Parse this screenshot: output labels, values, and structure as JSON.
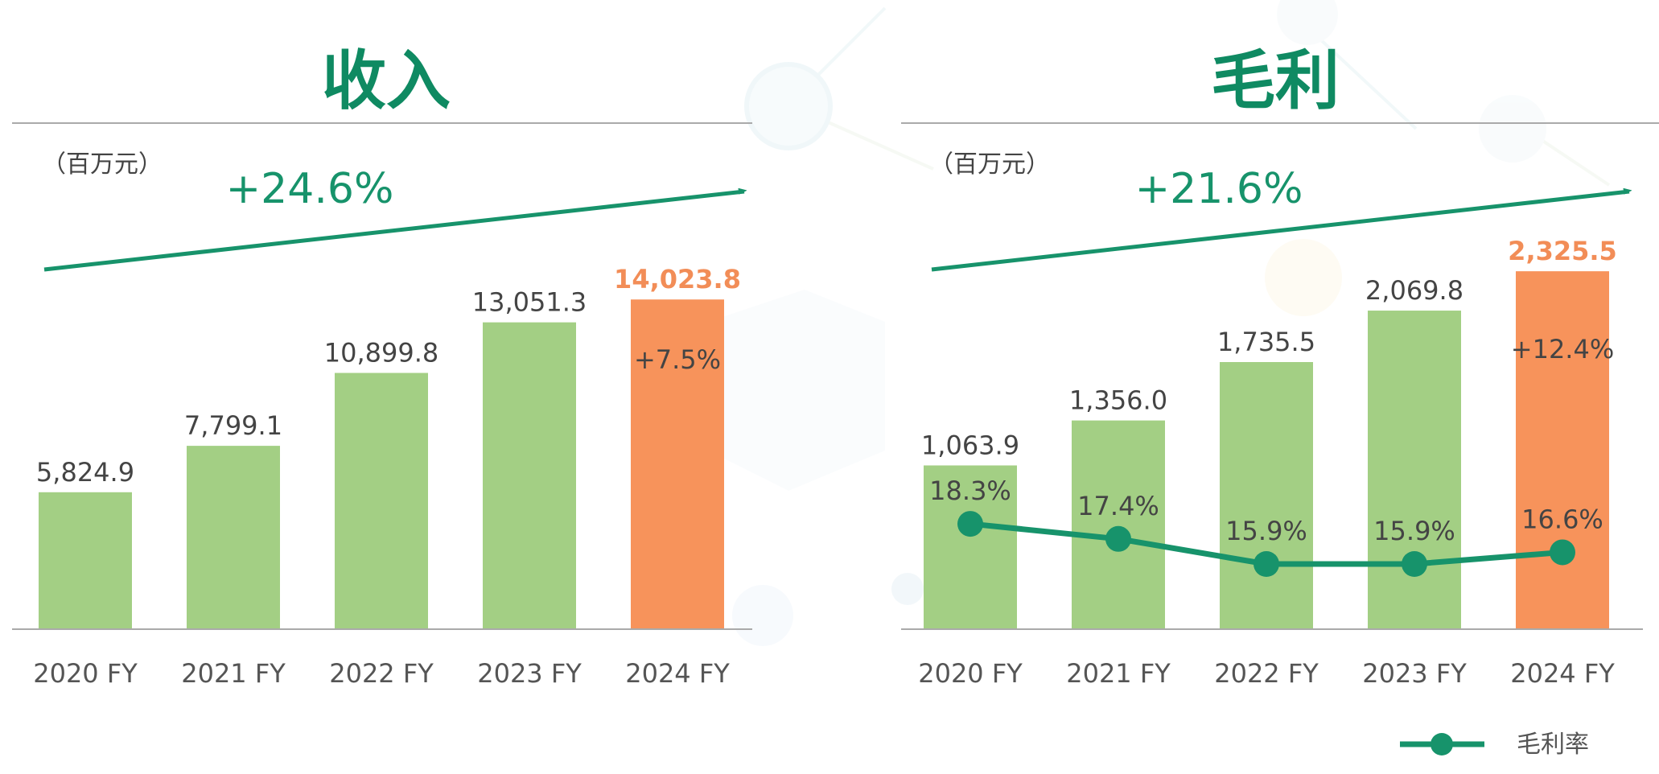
{
  "colors": {
    "bar": "#a3cf84",
    "bar_highlight": "#f7935b",
    "title": "#0f8a62",
    "arrow": "#17936b",
    "line": "#17936b",
    "highlight_text": "#f28d57",
    "axis": "#aaaaaa"
  },
  "chart_data": [
    {
      "type": "bar",
      "title": "收入",
      "unit": "（百万元）",
      "growth": "+24.6%",
      "categories": [
        "2020 FY",
        "2021 FY",
        "2022 FY",
        "2023 FY",
        "2024 FY"
      ],
      "values": [
        5824.9,
        7799.1,
        10899.8,
        13051.3,
        14023.8
      ],
      "value_labels": [
        "5,824.9",
        "7,799.1",
        "10,899.8",
        "13,051.3",
        "14,023.8"
      ],
      "highlight_index": 4,
      "highlight_change": "+7.5%",
      "ylim": [
        0,
        15000
      ]
    },
    {
      "type": "bar",
      "title": "毛利",
      "unit": "（百万元）",
      "growth": "+21.6%",
      "categories": [
        "2020 FY",
        "2021 FY",
        "2022 FY",
        "2023 FY",
        "2024 FY"
      ],
      "values": [
        1063.9,
        1356.0,
        1735.5,
        2069.8,
        2325.5
      ],
      "value_labels": [
        "1,063.9",
        "1,356.0",
        "1,735.5",
        "2,069.8",
        "2,325.5"
      ],
      "highlight_index": 4,
      "highlight_change": "+12.4%",
      "ylim": [
        0,
        2800
      ],
      "line_series": {
        "name": "毛利率",
        "values": [
          18.3,
          17.4,
          15.9,
          15.9,
          16.6
        ],
        "labels": [
          "18.3%",
          "17.4%",
          "15.9%",
          "15.9%",
          "16.6%"
        ]
      }
    }
  ]
}
